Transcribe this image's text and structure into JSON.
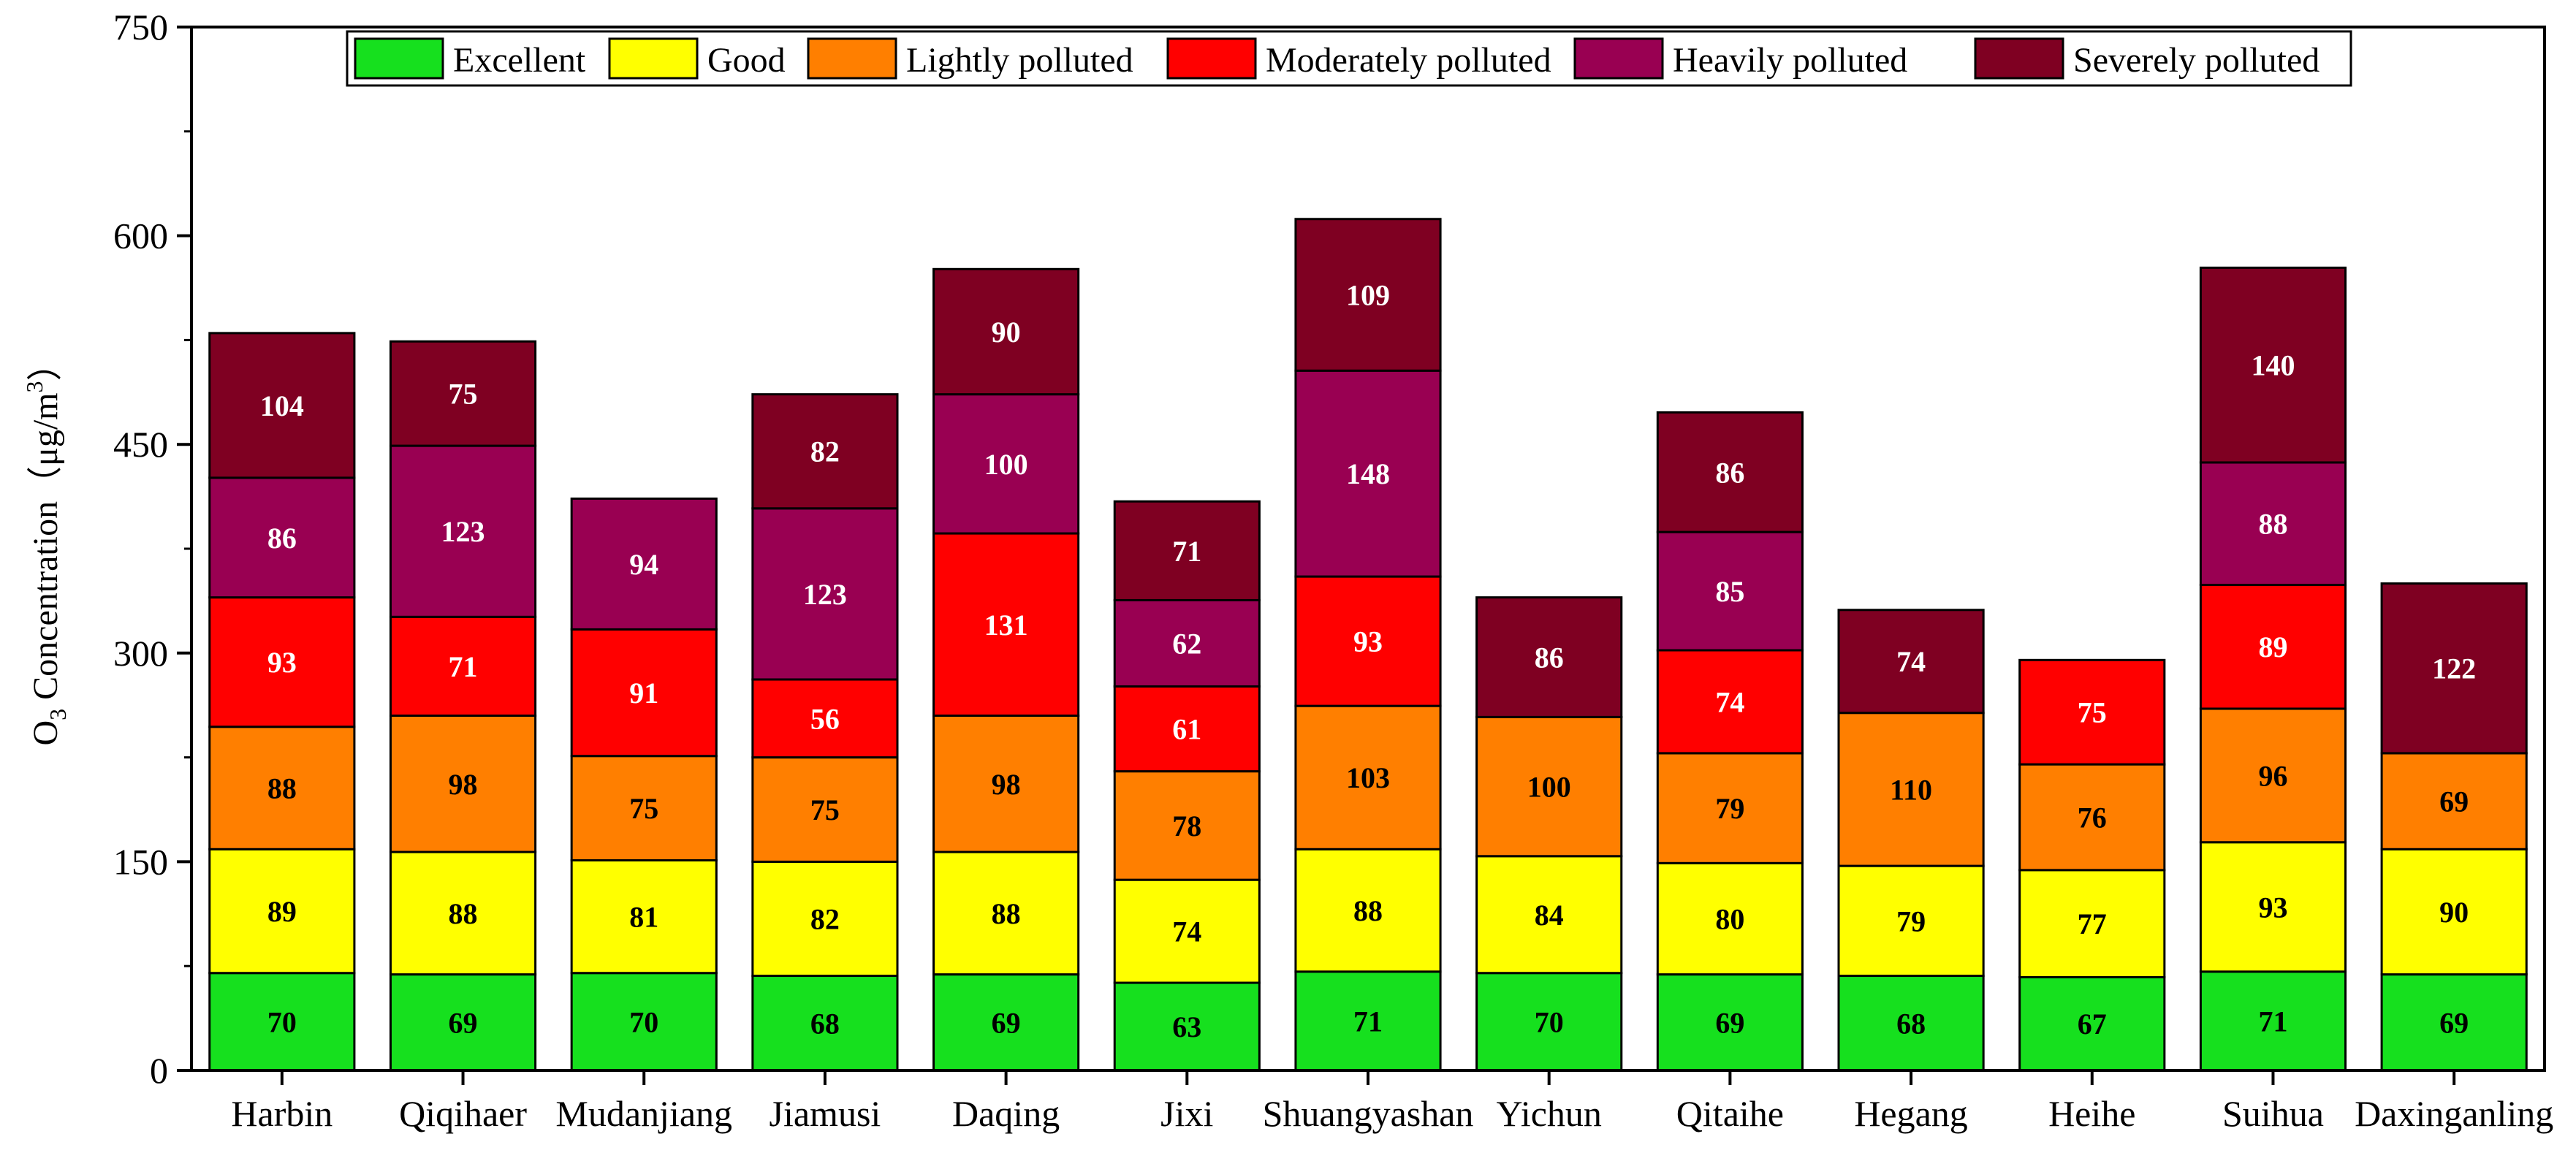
{
  "chart_data": {
    "type": "bar",
    "stacked": true,
    "title": "",
    "xlabel": "",
    "ylabel": {
      "prefix": "O",
      "subscript": "3",
      "text": " Concentration（μg/m",
      "superscript": "3",
      "suffix": "）"
    },
    "ylim": [
      0,
      750
    ],
    "yticks": [
      0,
      150,
      300,
      450,
      600,
      750
    ],
    "grid": false,
    "legend_position": "top",
    "categories": [
      "Harbin",
      "Qiqihaer",
      "Mudanjiang",
      "Jiamusi",
      "Daqing",
      "Jixi",
      "Shuangyashan",
      "Yichun",
      "Qitaihe",
      "Hegang",
      "Heihe",
      "Suihua",
      "Daxinganling"
    ],
    "series": [
      {
        "name": "Excellent",
        "color": "#16e01e",
        "label_color": "#000000",
        "values": [
          70,
          69,
          70,
          68,
          69,
          63,
          71,
          70,
          69,
          68,
          67,
          71,
          69
        ]
      },
      {
        "name": "Good",
        "color": "#ffff00",
        "label_color": "#000000",
        "values": [
          89,
          88,
          81,
          82,
          88,
          74,
          88,
          84,
          80,
          79,
          77,
          93,
          90
        ]
      },
      {
        "name": "Lightly polluted",
        "color": "#ff7f00",
        "label_color": "#000000",
        "values": [
          88,
          98,
          75,
          75,
          98,
          78,
          103,
          100,
          79,
          110,
          76,
          96,
          69
        ]
      },
      {
        "name": "Moderately polluted",
        "color": "#ff0000",
        "label_color": "#ffffff",
        "values": [
          93,
          71,
          91,
          56,
          131,
          61,
          93,
          null,
          74,
          null,
          75,
          89,
          null
        ]
      },
      {
        "name": "Heavily polluted",
        "color": "#990052",
        "label_color": "#ffffff",
        "values": [
          86,
          123,
          94,
          123,
          100,
          62,
          148,
          null,
          85,
          null,
          null,
          88,
          null
        ]
      },
      {
        "name": "Severely polluted",
        "color": "#7f0022",
        "label_color": "#ffffff",
        "values": [
          104,
          75,
          null,
          82,
          90,
          71,
          109,
          86,
          86,
          74,
          null,
          140,
          122
        ]
      }
    ]
  }
}
